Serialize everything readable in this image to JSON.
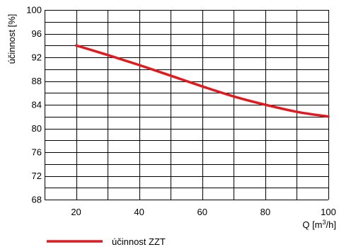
{
  "chart_data": {
    "type": "line",
    "title": "",
    "xlabel": "Q [m",
    "xlabel_sup": "3",
    "xlabel_suffix": "/h]",
    "ylabel": "účinnost [%]",
    "xlim": [
      10,
      100
    ],
    "ylim": [
      68,
      100
    ],
    "x_ticks": [
      20,
      40,
      60,
      80,
      100
    ],
    "y_ticks": [
      68,
      72,
      76,
      80,
      84,
      88,
      92,
      96,
      100
    ],
    "x_grid_step": 10,
    "y_grid_step": 2,
    "grid": true,
    "legend_position": "bottom-left",
    "series": [
      {
        "name": "účinnost ZZT",
        "color": "#e3191e",
        "x": [
          20,
          30,
          40,
          50,
          60,
          70,
          80,
          90,
          100
        ],
        "y": [
          94,
          92.4,
          90.7,
          88.9,
          87.1,
          85.4,
          84.0,
          82.8,
          82.0
        ]
      }
    ]
  },
  "colors": {
    "grid": "#000000",
    "series": "#e3191e"
  }
}
